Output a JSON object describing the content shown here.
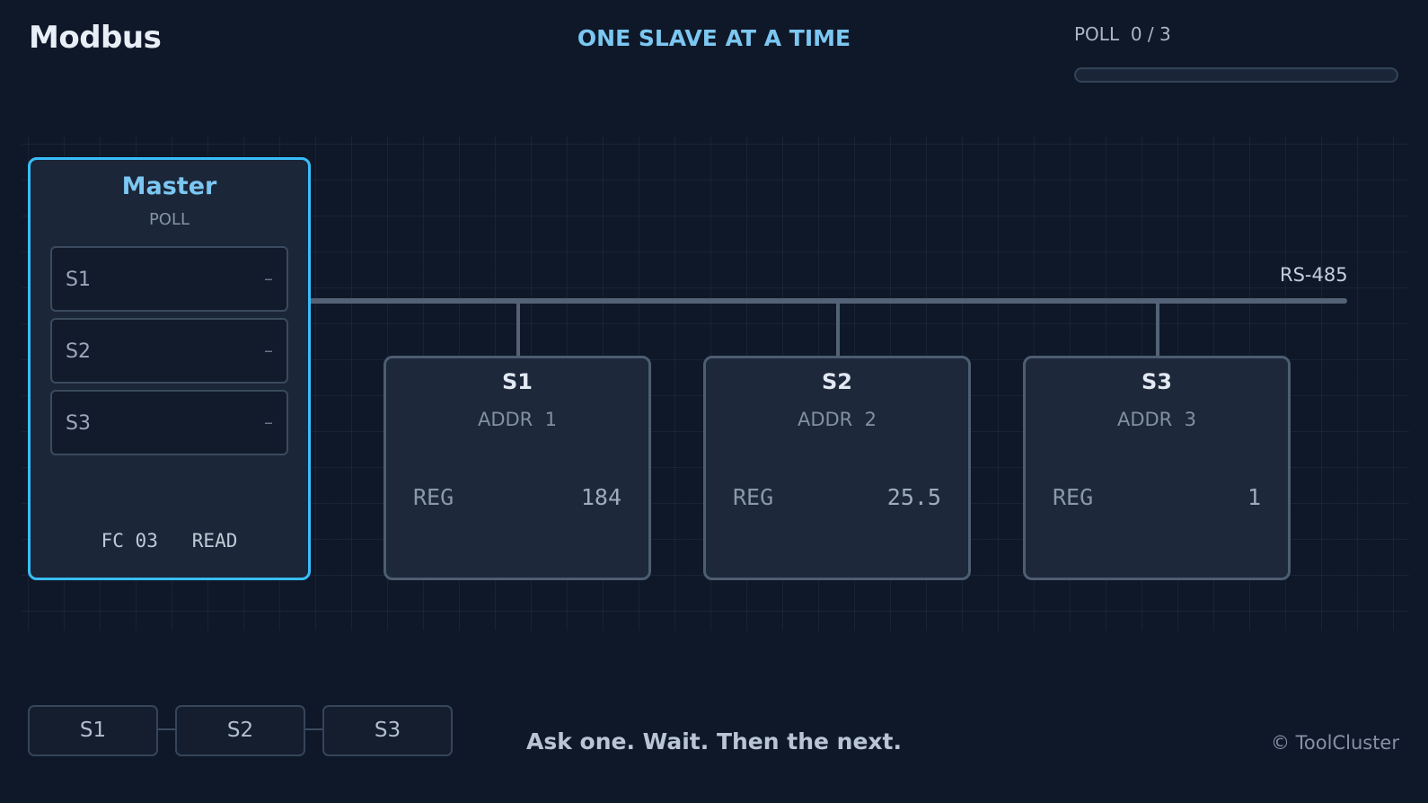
{
  "header": {
    "app_title": "Modbus",
    "headline": "ONE SLAVE AT A TIME",
    "poll_label": "POLL",
    "poll_current": 0,
    "poll_total": 3,
    "poll_counter": "0 / 3",
    "poll_progress_fraction": 0
  },
  "bus": {
    "label": "RS-485"
  },
  "master": {
    "title": "Master",
    "subtitle": "POLL",
    "queue": [
      {
        "name": "S1",
        "status": "–"
      },
      {
        "name": "S2",
        "status": "–"
      },
      {
        "name": "S3",
        "status": "–"
      }
    ],
    "function_code": "FC 03",
    "function_name": "READ"
  },
  "slaves": [
    {
      "name": "S1",
      "addr_label": "ADDR",
      "addr": "1",
      "reg_label": "REG",
      "reg_value": "184"
    },
    {
      "name": "S2",
      "addr_label": "ADDR",
      "addr": "2",
      "reg_label": "REG",
      "reg_value": "25.5"
    },
    {
      "name": "S3",
      "addr_label": "ADDR",
      "addr": "3",
      "reg_label": "REG",
      "reg_value": "1"
    }
  ],
  "sequence": [
    {
      "label": "S1"
    },
    {
      "label": "S2"
    },
    {
      "label": "S3"
    }
  ],
  "footer": {
    "tagline": "Ask one. Wait. Then the next.",
    "credit": "© ToolCluster"
  },
  "colors": {
    "accent": "#38bdf8",
    "background": "#0f1828",
    "panel": "#1d283a"
  }
}
